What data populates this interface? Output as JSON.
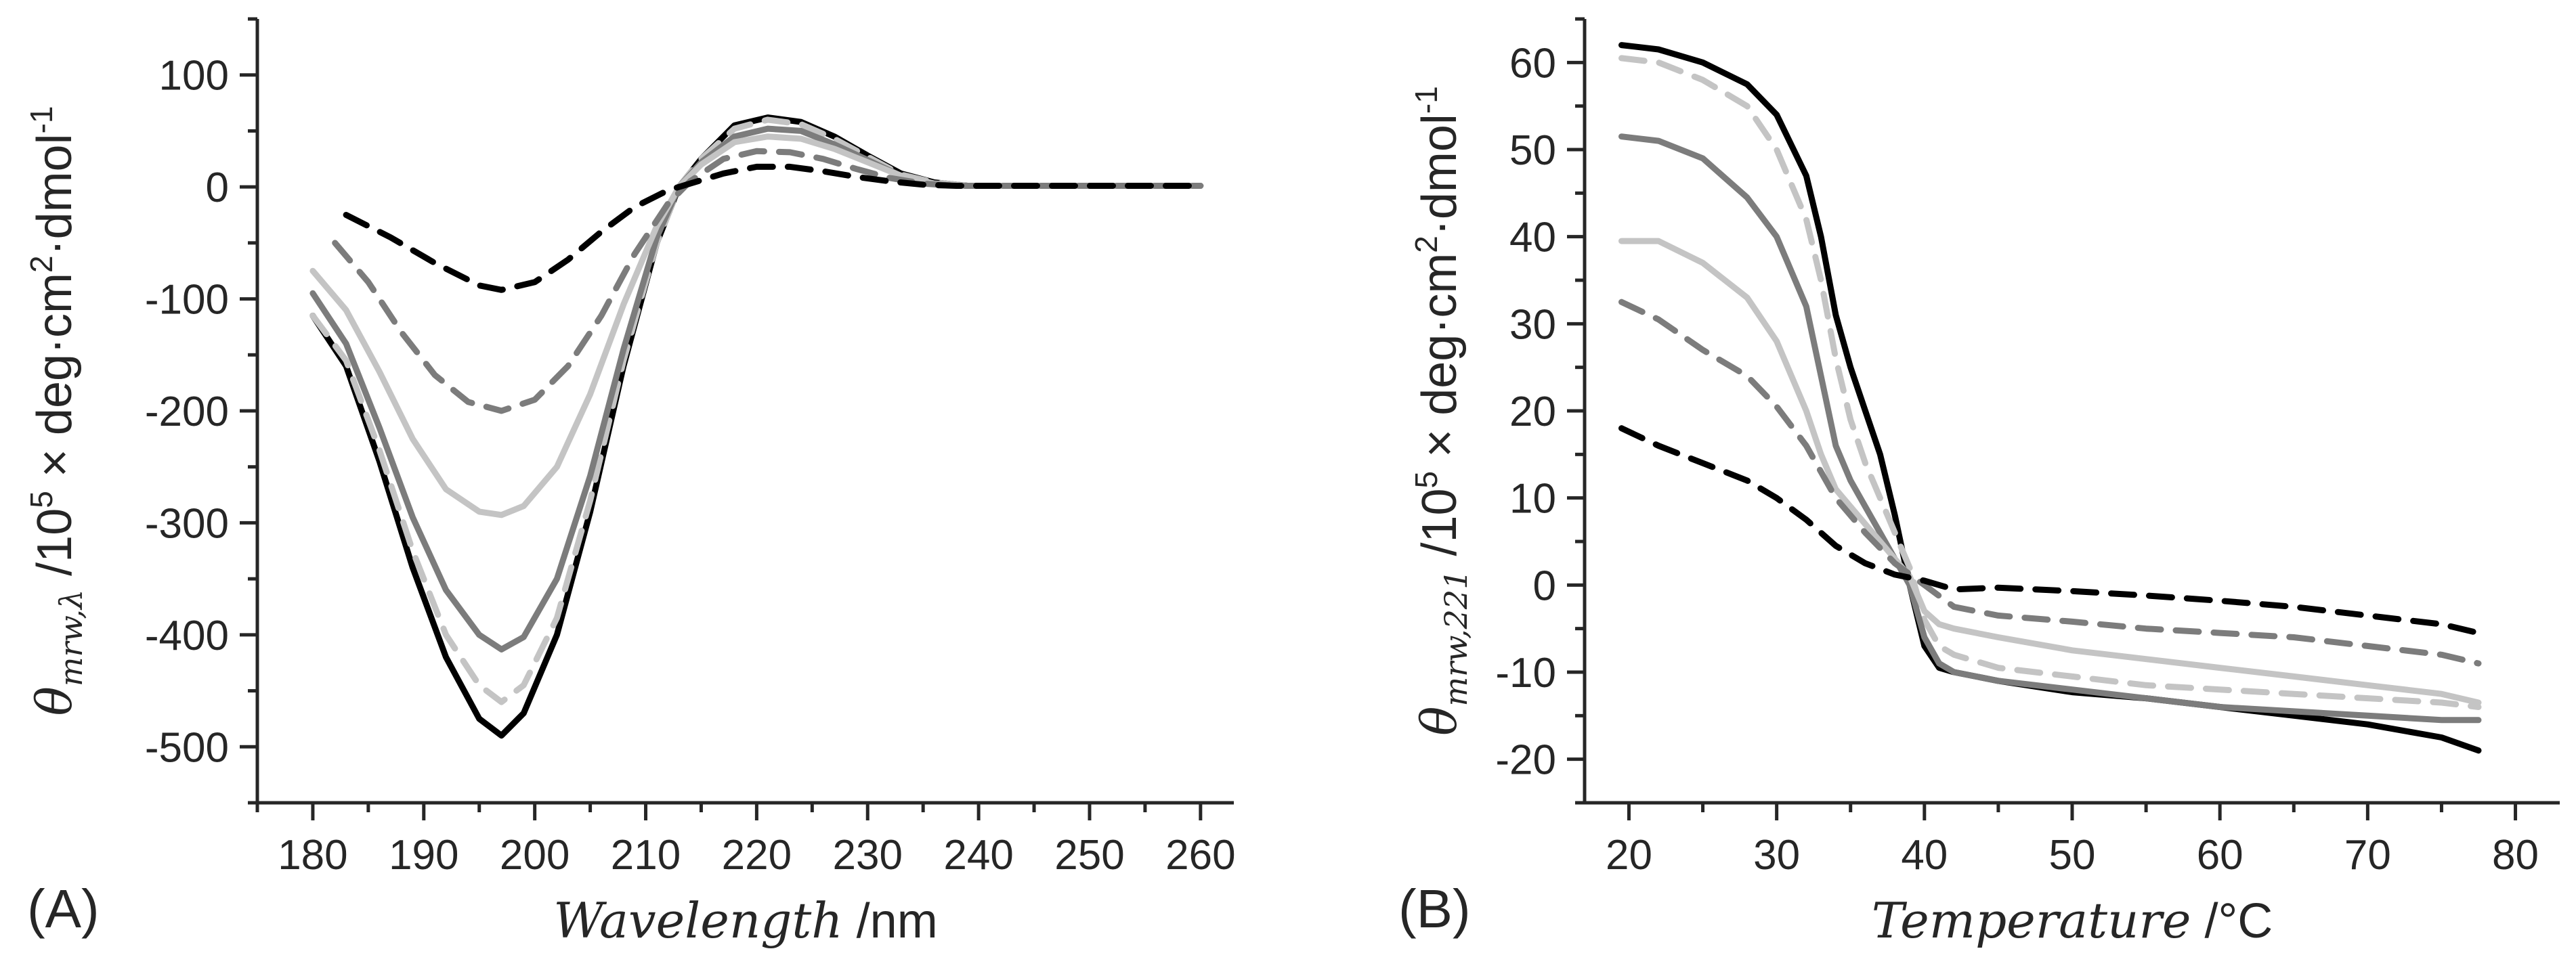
{
  "chart_data": [
    {
      "type": "line",
      "panel_label": "(A)",
      "xlabel_italic": "Wavelength",
      "xlabel_unit": " /nm",
      "ylabel": {
        "symbol": "θ",
        "subscript": "mrw,λ",
        "text_a": " /10",
        "exp_a": "5",
        "text_b": " × deg·cm",
        "exp_b": "2",
        "text_c": "·dmol",
        "exp_c": "-1"
      },
      "xlim": [
        175,
        263
      ],
      "ylim": [
        -550,
        150
      ],
      "xticks": [
        180,
        190,
        200,
        210,
        220,
        230,
        240,
        250,
        260
      ],
      "yticks": [
        -500,
        -400,
        -300,
        -200,
        -100,
        0,
        100
      ],
      "grid": false,
      "series": [
        {
          "style": "solid",
          "color": "#000000",
          "x": [
            180,
            183,
            186,
            189,
            192,
            195,
            197,
            199,
            202,
            205,
            208,
            211,
            213,
            215,
            218,
            221,
            224,
            227,
            230,
            233,
            236,
            239,
            245,
            250,
            255,
            260
          ],
          "y": [
            -115,
            -160,
            -245,
            -340,
            -420,
            -475,
            -490,
            -470,
            -400,
            -290,
            -160,
            -50,
            0,
            25,
            55,
            62,
            58,
            45,
            28,
            12,
            4,
            1,
            1,
            1,
            1,
            1
          ]
        },
        {
          "style": "dashed",
          "color": "#c4c4c4",
          "x": [
            180,
            183,
            186,
            189,
            192,
            195,
            197,
            199,
            202,
            205,
            208,
            211,
            213,
            215,
            218,
            221,
            224,
            227,
            230,
            233,
            236,
            239,
            245,
            250,
            255,
            260
          ],
          "y": [
            -115,
            -155,
            -235,
            -325,
            -400,
            -445,
            -460,
            -445,
            -385,
            -280,
            -155,
            -50,
            0,
            25,
            52,
            60,
            56,
            43,
            27,
            11,
            4,
            1,
            1,
            1,
            1,
            1
          ]
        },
        {
          "style": "solid",
          "color": "#7c7c7c",
          "x": [
            180,
            183,
            186,
            189,
            192,
            195,
            197,
            199,
            202,
            205,
            208,
            211,
            213,
            215,
            218,
            221,
            224,
            227,
            230,
            233,
            236,
            239,
            245,
            250,
            255,
            260
          ],
          "y": [
            -95,
            -140,
            -215,
            -295,
            -360,
            -400,
            -413,
            -402,
            -350,
            -258,
            -145,
            -45,
            0,
            22,
            45,
            52,
            50,
            38,
            24,
            10,
            3,
            1,
            1,
            1,
            1,
            1
          ]
        },
        {
          "style": "solid",
          "color": "#c4c4c4",
          "x": [
            180,
            183,
            186,
            189,
            192,
            195,
            197,
            199,
            202,
            205,
            208,
            211,
            213,
            215,
            218,
            221,
            224,
            227,
            230,
            233,
            236,
            239,
            245,
            250,
            255,
            260
          ],
          "y": [
            -75,
            -110,
            -165,
            -225,
            -270,
            -290,
            -293,
            -285,
            -250,
            -185,
            -105,
            -35,
            0,
            20,
            40,
            45,
            43,
            34,
            22,
            10,
            3,
            1,
            1,
            1,
            1,
            1
          ]
        },
        {
          "style": "dashed",
          "color": "#7c7c7c",
          "x": [
            182,
            185,
            188,
            191,
            194,
            197,
            200,
            203,
            206,
            209,
            212,
            214,
            217,
            220,
            223,
            226,
            229,
            232,
            235,
            238,
            245,
            250,
            255,
            260
          ],
          "y": [
            -50,
            -85,
            -130,
            -168,
            -192,
            -200,
            -190,
            -160,
            -115,
            -60,
            -15,
            5,
            25,
            32,
            31,
            25,
            16,
            8,
            3,
            1,
            1,
            1,
            1,
            1
          ]
        },
        {
          "style": "dashed",
          "color": "#000000",
          "x": [
            183,
            187,
            191,
            195,
            197,
            200,
            203,
            206,
            209,
            212,
            214,
            217,
            220,
            223,
            226,
            229,
            232,
            235,
            238,
            245,
            250,
            255,
            260
          ],
          "y": [
            -25,
            -45,
            -68,
            -88,
            -92,
            -85,
            -65,
            -40,
            -18,
            -3,
            3,
            12,
            18,
            18,
            14,
            9,
            5,
            2,
            1,
            1,
            1,
            1,
            1
          ]
        }
      ]
    },
    {
      "type": "line",
      "panel_label": "(B)",
      "xlabel_italic": "Temperature",
      "xlabel_unit": " /°C",
      "ylabel": {
        "symbol": "θ",
        "subscript": "mrw,221",
        "text_a": " /10",
        "exp_a": "5",
        "text_b": " × deg·cm",
        "exp_b": "2",
        "text_c": "·dmol",
        "exp_c": "-1"
      },
      "xlim": [
        17,
        83
      ],
      "ylim": [
        -25,
        65
      ],
      "xticks": [
        20,
        30,
        40,
        50,
        60,
        70,
        80
      ],
      "yticks": [
        -20,
        -10,
        0,
        10,
        20,
        30,
        40,
        50,
        60
      ],
      "grid": false,
      "series": [
        {
          "style": "solid",
          "color": "#000000",
          "x": [
            19.5,
            22,
            25,
            28,
            30,
            32,
            33,
            34,
            35,
            36,
            37,
            38,
            39,
            40,
            41,
            42,
            45,
            50,
            55,
            60,
            65,
            70,
            75,
            77.5
          ],
          "y": [
            62,
            61.5,
            60,
            57.5,
            54,
            47,
            40,
            31,
            25,
            20,
            15,
            8,
            0,
            -7,
            -9.5,
            -10,
            -11,
            -12.3,
            -13,
            -14,
            -15,
            -16,
            -17.5,
            -19
          ]
        },
        {
          "style": "dashed",
          "color": "#c4c4c4",
          "x": [
            19.5,
            22,
            25,
            28,
            30,
            32,
            33,
            34,
            35,
            36,
            37,
            38,
            39,
            40,
            41,
            42,
            45,
            50,
            55,
            60,
            65,
            70,
            75,
            77.5
          ],
          "y": [
            60.5,
            60,
            58,
            55,
            50,
            42,
            35,
            26,
            19,
            14,
            10,
            6,
            2,
            -4,
            -7,
            -8,
            -9.5,
            -10.5,
            -11.5,
            -12,
            -12.5,
            -13,
            -13.5,
            -14
          ]
        },
        {
          "style": "solid",
          "color": "#7c7c7c",
          "x": [
            19.5,
            22,
            25,
            28,
            30,
            32,
            33,
            34,
            35,
            36,
            37,
            38,
            39,
            40,
            41,
            42,
            45,
            50,
            55,
            60,
            65,
            70,
            75,
            77.5
          ],
          "y": [
            51.5,
            51,
            49,
            44.5,
            40,
            32,
            24,
            16,
            12,
            9,
            6,
            3,
            0,
            -6,
            -9,
            -10,
            -11,
            -12,
            -13,
            -14,
            -14.5,
            -15,
            -15.5,
            -15.5
          ]
        },
        {
          "style": "solid",
          "color": "#c4c4c4",
          "x": [
            19.5,
            22,
            25,
            28,
            30,
            32,
            33,
            34,
            35,
            36,
            37,
            38,
            39,
            40,
            41,
            42,
            45,
            50,
            55,
            60,
            65,
            70,
            75,
            77.5
          ],
          "y": [
            39.5,
            39.5,
            37,
            33,
            28,
            20,
            15,
            11,
            9,
            7,
            5,
            3,
            1,
            -3,
            -4.5,
            -5,
            -6,
            -7.5,
            -8.5,
            -9.5,
            -10.5,
            -11.5,
            -12.5,
            -13.5
          ]
        },
        {
          "style": "dashed",
          "color": "#7c7c7c",
          "x": [
            19.5,
            22,
            25,
            28,
            30,
            32,
            34,
            36,
            38,
            40,
            42,
            45,
            50,
            55,
            60,
            65,
            70,
            75,
            77.5
          ],
          "y": [
            32.5,
            30.5,
            27,
            24,
            20.5,
            16,
            10,
            6,
            2.5,
            0,
            -2.5,
            -3.5,
            -4.2,
            -5,
            -5.5,
            -6,
            -7,
            -8,
            -9
          ]
        },
        {
          "style": "dashed",
          "color": "#000000",
          "x": [
            19.5,
            22,
            25,
            28,
            30,
            32,
            34,
            36,
            38,
            40,
            42,
            45,
            50,
            55,
            60,
            65,
            70,
            75,
            77.5
          ],
          "y": [
            18,
            16,
            14,
            12,
            10,
            7.5,
            4.5,
            2.5,
            1.2,
            0.5,
            -0.5,
            -0.3,
            -0.7,
            -1.2,
            -1.8,
            -2.5,
            -3.5,
            -4.5,
            -5.5
          ]
        }
      ]
    }
  ]
}
